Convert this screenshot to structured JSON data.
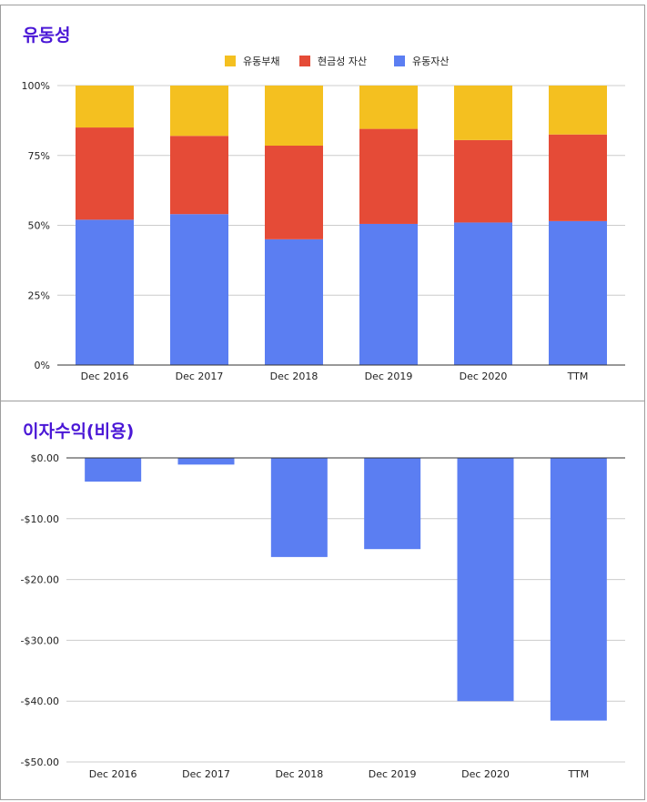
{
  "chart_data": [
    {
      "type": "bar",
      "stacked": true,
      "title": "유동성",
      "categories": [
        "Dec 2016",
        "Dec 2017",
        "Dec 2018",
        "Dec 2019",
        "Dec 2020",
        "TTM"
      ],
      "series": [
        {
          "name": "유동부채",
          "color": "#f4c020",
          "values": [
            15,
            18,
            21.5,
            15.5,
            19.5,
            17.5
          ]
        },
        {
          "name": "현금성 자산",
          "color": "#e54b37",
          "values": [
            33,
            28,
            33.5,
            34,
            29.5,
            31
          ]
        },
        {
          "name": "유동자산",
          "color": "#5b7ef2",
          "values": [
            52,
            54,
            45,
            50.5,
            51,
            51.5
          ]
        }
      ],
      "stack_order": [
        "유동자산",
        "현금성 자산",
        "유동부채"
      ],
      "ylim": [
        0,
        100
      ],
      "y_ticks": [
        0,
        25,
        50,
        75,
        100
      ],
      "y_tick_labels": [
        "0%",
        "25%",
        "50%",
        "75%",
        "100%"
      ],
      "legend_position": "top-center",
      "grid": true
    },
    {
      "type": "bar",
      "title": "이자수익(비용)",
      "categories": [
        "Dec 2016",
        "Dec 2017",
        "Dec 2018",
        "Dec 2019",
        "Dec 2020",
        "TTM"
      ],
      "series": [
        {
          "color": "#5b7ef2",
          "values": [
            -3.9,
            -1.1,
            -16.3,
            -15.0,
            -40.0,
            -43.2
          ]
        }
      ],
      "ylim": [
        -50,
        0
      ],
      "y_ticks": [
        0,
        -10,
        -20,
        -30,
        -40,
        -50
      ],
      "y_tick_labels": [
        "$0.00",
        "-$10.00",
        "-$20.00",
        "-$30.00",
        "-$40.00",
        "-$50.00"
      ],
      "grid": true
    }
  ]
}
